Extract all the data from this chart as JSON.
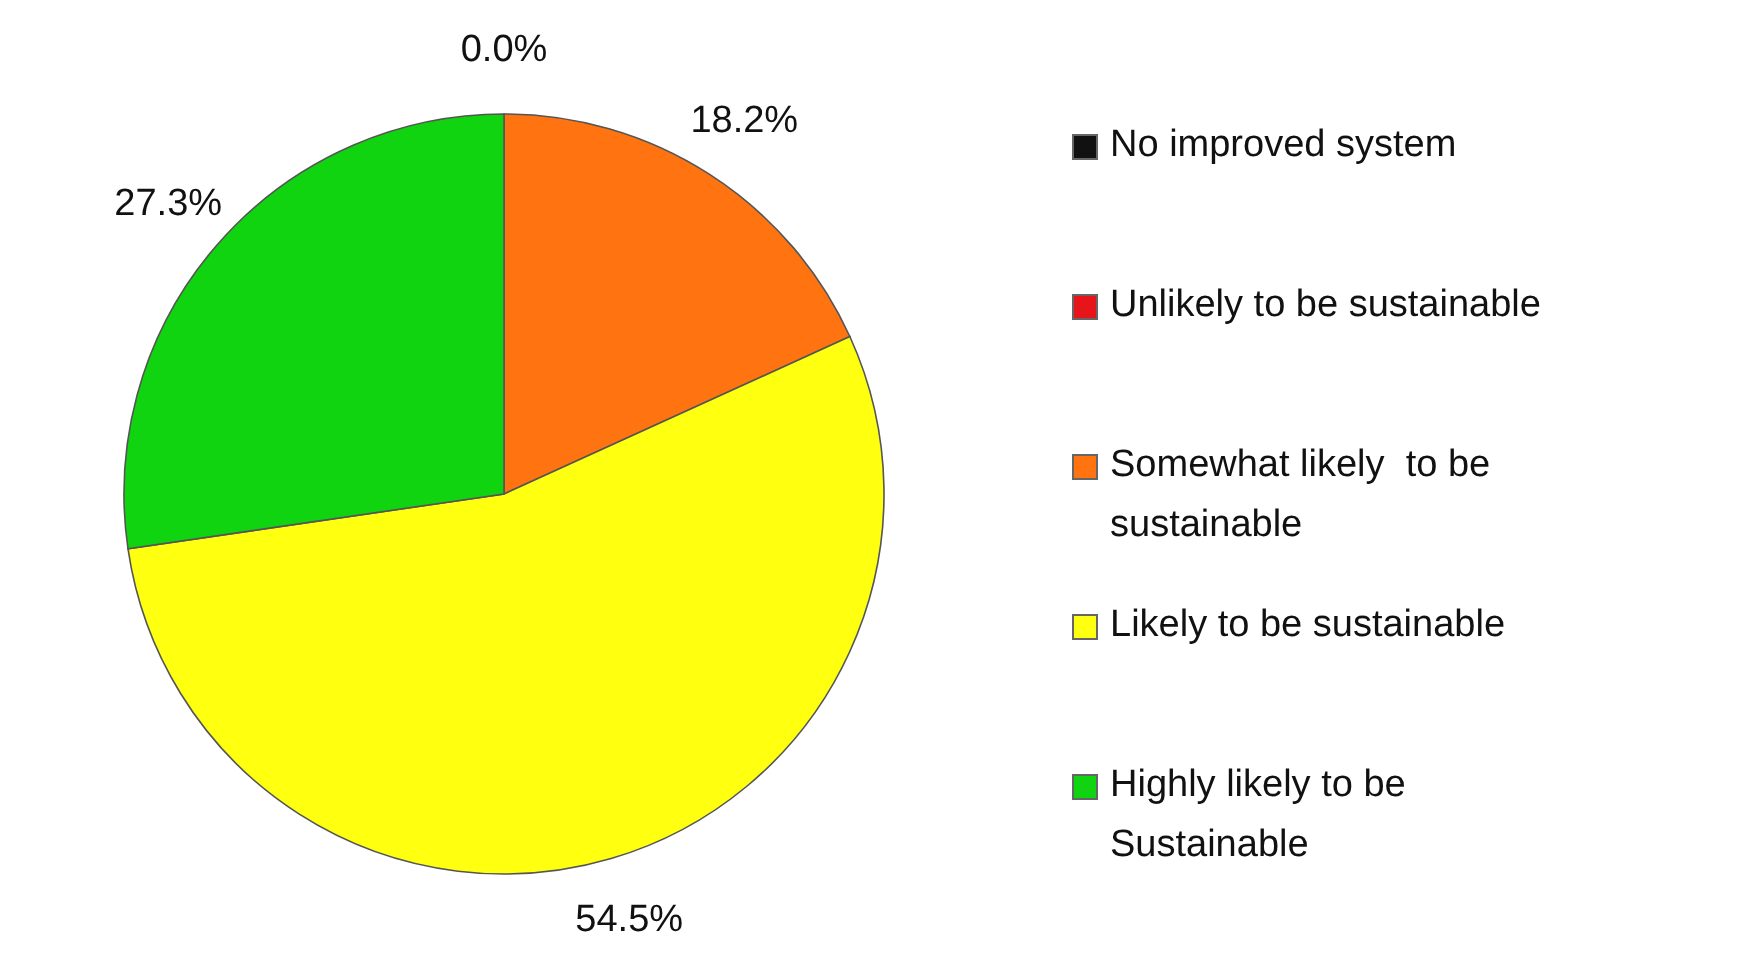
{
  "chart_data": {
    "type": "pie",
    "categories": [
      "No improved system",
      "Unlikely to be sustainable",
      "Somewhat likely  to be sustainable",
      "Likely to be sustainable",
      "Highly likely to be Sustainable"
    ],
    "values": [
      0.0,
      0.0,
      18.2,
      54.5,
      27.3
    ],
    "colors": [
      "#111111",
      "#e8141c",
      "#ff7410",
      "#ffff10",
      "#10d410"
    ],
    "value_labels": [
      "0.0%",
      null,
      "18.2%",
      "54.5%",
      "27.3%"
    ],
    "legend": "right"
  }
}
